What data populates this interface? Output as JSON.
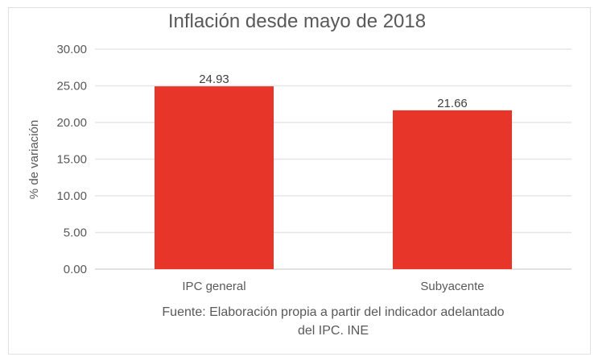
{
  "chart_data": {
    "type": "bar",
    "title": "Inflación desde mayo de 2018",
    "xlabel": "Fuente: Elaboración propia a partir del indicador adelantado del IPC. INE",
    "xlabel_lines": [
      "Fuente: Elaboración propia a partir del indicador adelantado",
      "del IPC. INE"
    ],
    "ylabel": "% de variación",
    "categories": [
      "IPC general",
      "Subyacente"
    ],
    "values": [
      24.93,
      21.66
    ],
    "data_labels": [
      "24.93",
      "21.66"
    ],
    "ylim": [
      0,
      30
    ],
    "yticks": [
      "0.00",
      "5.00",
      "10.00",
      "15.00",
      "20.00",
      "25.00",
      "30.00"
    ],
    "grid": true,
    "legend": "none",
    "bar_color": "#E8352A"
  }
}
